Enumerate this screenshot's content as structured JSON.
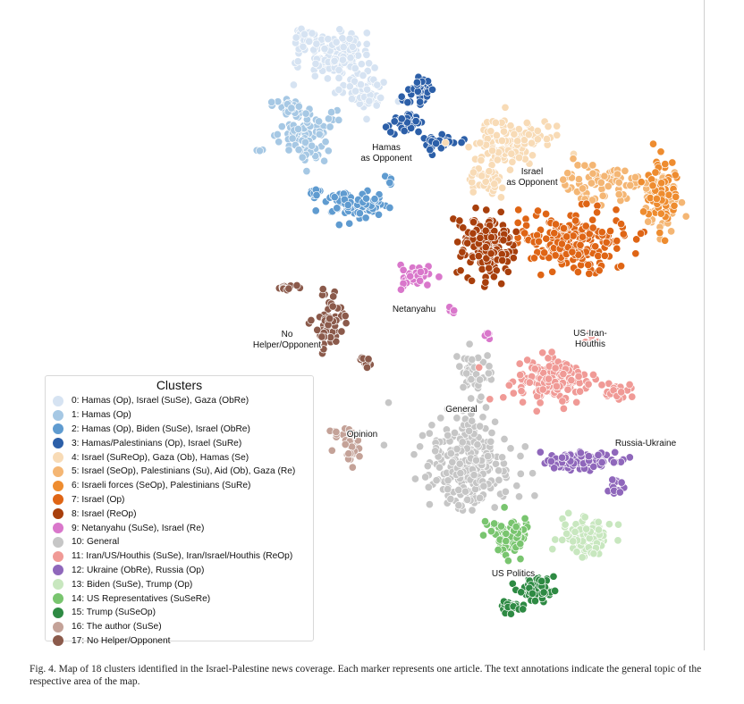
{
  "chart_data": {
    "type": "scatter",
    "title": "",
    "xlabel": "",
    "ylabel": "",
    "legend": {
      "title": "Clusters",
      "placement": "bottom-left",
      "items": [
        {
          "label": "0: Hamas (Op), Israel (SuSe), Gaza (ObRe)",
          "color": "#d6e3f2"
        },
        {
          "label": "1: Hamas (Op)",
          "color": "#a6c8e4"
        },
        {
          "label": "2: Hamas (Op), Biden (SuSe), Israel (ObRe)",
          "color": "#5f9bd0"
        },
        {
          "label": "3: Hamas/Palestinians (Op), Israel (SuRe)",
          "color": "#2c5fa8"
        },
        {
          "label": "4: Israel (SuReOp), Gaza (Ob), Hamas (Se)",
          "color": "#f8dbb6"
        },
        {
          "label": "5: Israel (SeOp), Palestinians (Su), Aid (Ob), Gaza (Re)",
          "color": "#f4b674"
        },
        {
          "label": "6: Israeli forces (SeOp), Palestinians (SuRe)",
          "color": "#ee8c2f"
        },
        {
          "label": "7: Israel (Op)",
          "color": "#df6515"
        },
        {
          "label": "8: Israel (ReOp)",
          "color": "#a83f0c"
        },
        {
          "label": "9: Netanyahu (SuSe), Israel (Re)",
          "color": "#d977cb"
        },
        {
          "label": "10: General",
          "color": "#c6c6c6"
        },
        {
          "label": "11: Iran/US/Houthis (SuSe), Iran/Israel/Houthis (ReOp)",
          "color": "#f09a96"
        },
        {
          "label": "12: Ukraine (ObRe), Russia (Op)",
          "color": "#8f67bb"
        },
        {
          "label": "13: Biden (SuSe), Trump (Op)",
          "color": "#c8e7bf"
        },
        {
          "label": "14: US Representatives (SuSeRe)",
          "color": "#79c56f"
        },
        {
          "label": "15: Trump (SuSeOp)",
          "color": "#2e8a43"
        },
        {
          "label": "16: The author (SuSe)",
          "color": "#c4a298"
        },
        {
          "label": "17: No Helper/Opponent",
          "color": "#8b5a4b"
        }
      ]
    },
    "annotations": [
      {
        "text": "Hamas\nas Opponent",
        "cluster": 3
      },
      {
        "text": "Israel\nas Opponent",
        "cluster": 5
      },
      {
        "text": "Netanyahu",
        "cluster": 9
      },
      {
        "text": "No\nHelper/Opponent",
        "cluster": 17
      },
      {
        "text": "US-Iran-\nHouthis",
        "cluster": 11
      },
      {
        "text": "General",
        "cluster": 10
      },
      {
        "text": "Opinion",
        "cluster": 16
      },
      {
        "text": "Russia-Ukraine",
        "cluster": 12
      },
      {
        "text": "US Politics",
        "cluster": 15
      }
    ],
    "axes_visible": false,
    "grid": false
  },
  "caption": "Fig. 4.  Map of 18 clusters identified in the Israel-Palestine news coverage. Each marker represents one article. The text annotations indicate the general topic of the respective area of the map."
}
